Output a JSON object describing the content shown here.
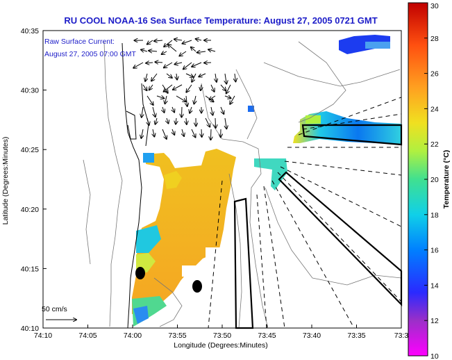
{
  "title": "RU COOL  NOAA-16  Sea Surface Temperature:  August 27, 2005 0721 GMT",
  "annotation": {
    "line1": "Raw Surface Current:",
    "line2": "August 27, 2005 07:00 GMT"
  },
  "scale_label": "50 cm/s",
  "chart_data": {
    "type": "heatmap",
    "title": "RU COOL  NOAA-16  Sea Surface Temperature:  August 27, 2005 0721 GMT",
    "xlabel": "Longitude (Degrees:Minutes)",
    "ylabel": "Latitude (Degrees:Minutes)",
    "x_ticks": [
      "74:10",
      "74:05",
      "74:00",
      "73:55",
      "73:50",
      "73:45",
      "73:40",
      "73:35",
      "73:3"
    ],
    "y_ticks": [
      "40:35",
      "40:30",
      "40:25",
      "40:20",
      "40:15",
      "40:10"
    ],
    "colorbar": {
      "label": "Temperature (°C)",
      "min": 10,
      "max": 30,
      "ticks": [
        "30",
        "28",
        "26",
        "24",
        "22",
        "20",
        "18",
        "16",
        "14",
        "12",
        "10"
      ]
    },
    "sst_patches": [
      {
        "region": "northeast offshore",
        "temp_c": 12
      },
      {
        "region": "isolated pixel near 73:48W 40:27N",
        "temp_c": 13
      },
      {
        "region": "east offshore band",
        "temp_c": 17
      },
      {
        "region": "coastal plume",
        "temp_c": 24.5
      },
      {
        "region": "southern coast",
        "temp_c": 23.5
      }
    ]
  },
  "colors": {
    "text_blue": "#1c1cc8",
    "colormap": [
      "#ff00ff",
      "#9b2fc8",
      "#2a2aff",
      "#0080ff",
      "#10d0e8",
      "#40e090",
      "#b0f040",
      "#f0e020",
      "#ffa020",
      "#ff5010",
      "#c00000"
    ]
  }
}
